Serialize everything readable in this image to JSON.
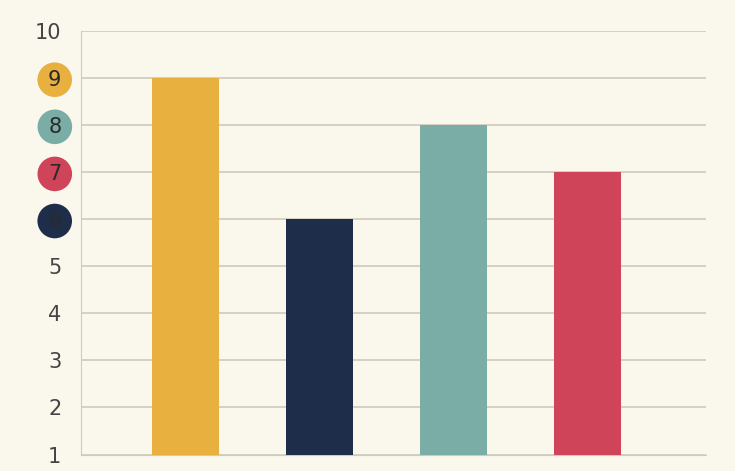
{
  "chart_data": {
    "type": "bar",
    "categories": [
      null,
      null,
      null,
      null
    ],
    "values": [
      9,
      6,
      8,
      7
    ],
    "colors": [
      "#e8b03e",
      "#1e2d4a",
      "#7aada5",
      "#d0445a"
    ],
    "ylim": [
      1,
      10
    ],
    "yticks": [
      1,
      2,
      3,
      4,
      5,
      6,
      7,
      8,
      9,
      10
    ],
    "grid": true,
    "tick_labels": "y"
  }
}
